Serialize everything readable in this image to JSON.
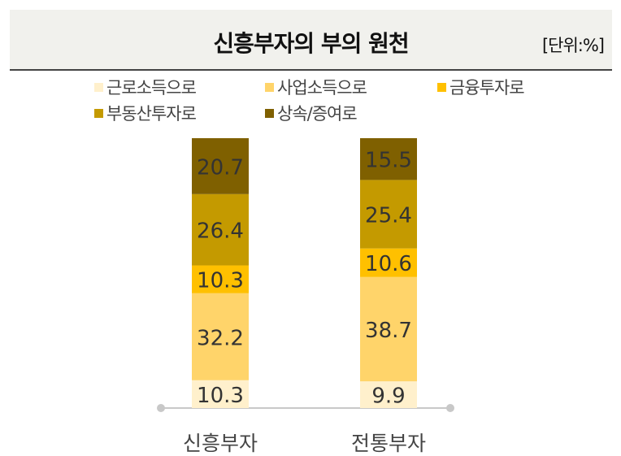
{
  "header": {
    "title": "신흥부자의 부의 원천",
    "unit": "[단위:%]"
  },
  "colors": {
    "header_bg": "#f1f1ed",
    "label_text": "#444444"
  },
  "chart_data": {
    "type": "bar",
    "stacked": true,
    "categories": [
      "신흥부자",
      "전통부자"
    ],
    "series": [
      {
        "name": "근로소득으로",
        "color": "#fff0cc",
        "values": [
          10.3,
          9.9
        ]
      },
      {
        "name": "사업소득으로",
        "color": "#ffd46a",
        "values": [
          32.2,
          38.7
        ]
      },
      {
        "name": "금융투자로",
        "color": "#ffc000",
        "values": [
          10.3,
          10.6
        ]
      },
      {
        "name": "부동산투자로",
        "color": "#c49a00",
        "values": [
          26.4,
          25.4
        ]
      },
      {
        "name": "상속/증여로",
        "color": "#7f6000",
        "values": [
          20.7,
          15.5
        ]
      }
    ],
    "ylim": [
      0,
      100
    ],
    "legend": "top",
    "grid": false
  }
}
